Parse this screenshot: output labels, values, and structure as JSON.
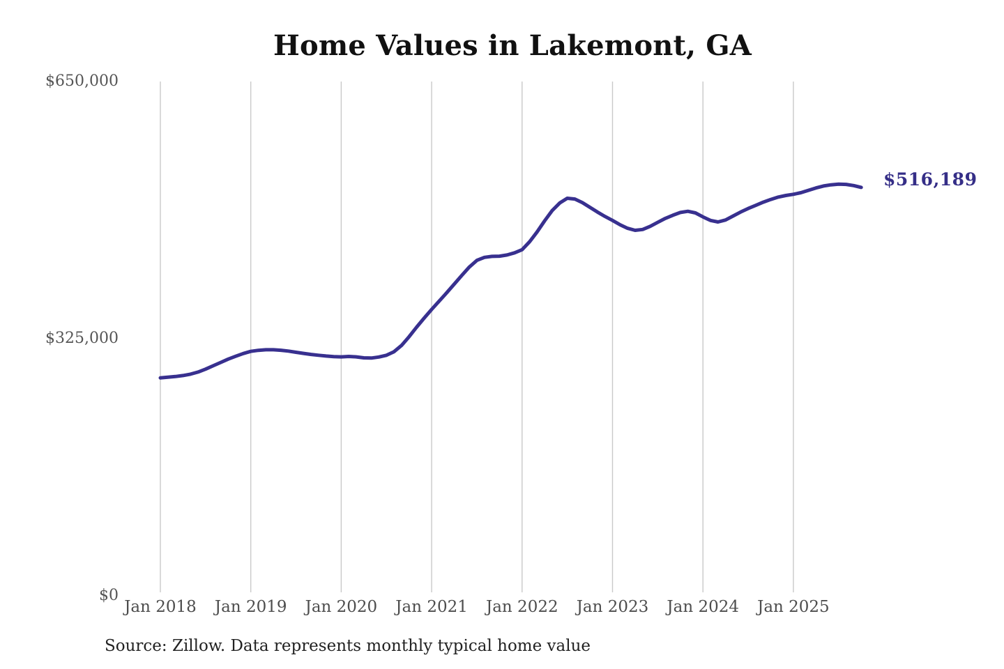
{
  "page": {
    "background": "#ffffff"
  },
  "colors": {
    "line": "#38308f",
    "latest_label": "#352e87",
    "gridline": "#c9c9c9",
    "axis_text": "#555555",
    "title_text": "#111111",
    "source_text": "#222222"
  },
  "footer": {
    "source_note": "Source: Zillow. Data represents monthly typical home value"
  },
  "chart_data": {
    "type": "line",
    "title": "Home Values in Lakemont, GA",
    "xlabel": "",
    "ylabel": "",
    "ylim": [
      0,
      650000
    ],
    "y_tick_labels": [
      "$0",
      "$325,000",
      "$650,000"
    ],
    "x_tick_labels": [
      "Jan 2018",
      "Jan 2019",
      "Jan 2020",
      "Jan 2021",
      "Jan 2022",
      "Jan 2023",
      "Jan 2024",
      "Jan 2025"
    ],
    "x_interval": "monthly",
    "x_range": [
      "Jan 2018",
      "Oct 2025"
    ],
    "grid": "vertical-only",
    "legend": "none",
    "latest_value": 516189,
    "latest_value_label": "$516,189",
    "series": [
      {
        "name": "Typical home value",
        "values": [
          275500,
          276300,
          277200,
          278400,
          280200,
          282800,
          286500,
          290700,
          295000,
          299200,
          302800,
          306200,
          309000,
          310300,
          311000,
          311000,
          310400,
          309300,
          307800,
          306400,
          305100,
          304000,
          303100,
          302400,
          302000,
          302500,
          302000,
          300800,
          300500,
          301800,
          304000,
          308500,
          316500,
          327500,
          339500,
          351000,
          362000,
          372500,
          383000,
          394000,
          405000,
          415500,
          424000,
          427800,
          429000,
          429300,
          430800,
          433500,
          437500,
          447500,
          460000,
          474000,
          487000,
          496500,
          502500,
          501500,
          497000,
          491000,
          485000,
          479500,
          474500,
          469000,
          464500,
          462000,
          463000,
          467000,
          472000,
          477000,
          481000,
          484500,
          486000,
          484000,
          479000,
          474500,
          472500,
          475000,
          480000,
          485000,
          489500,
          493500,
          497500,
          501000,
          504000,
          506000,
          507500,
          509500,
          512500,
          515500,
          518000,
          519500,
          520300,
          520000,
          518500,
          516189
        ]
      }
    ]
  }
}
